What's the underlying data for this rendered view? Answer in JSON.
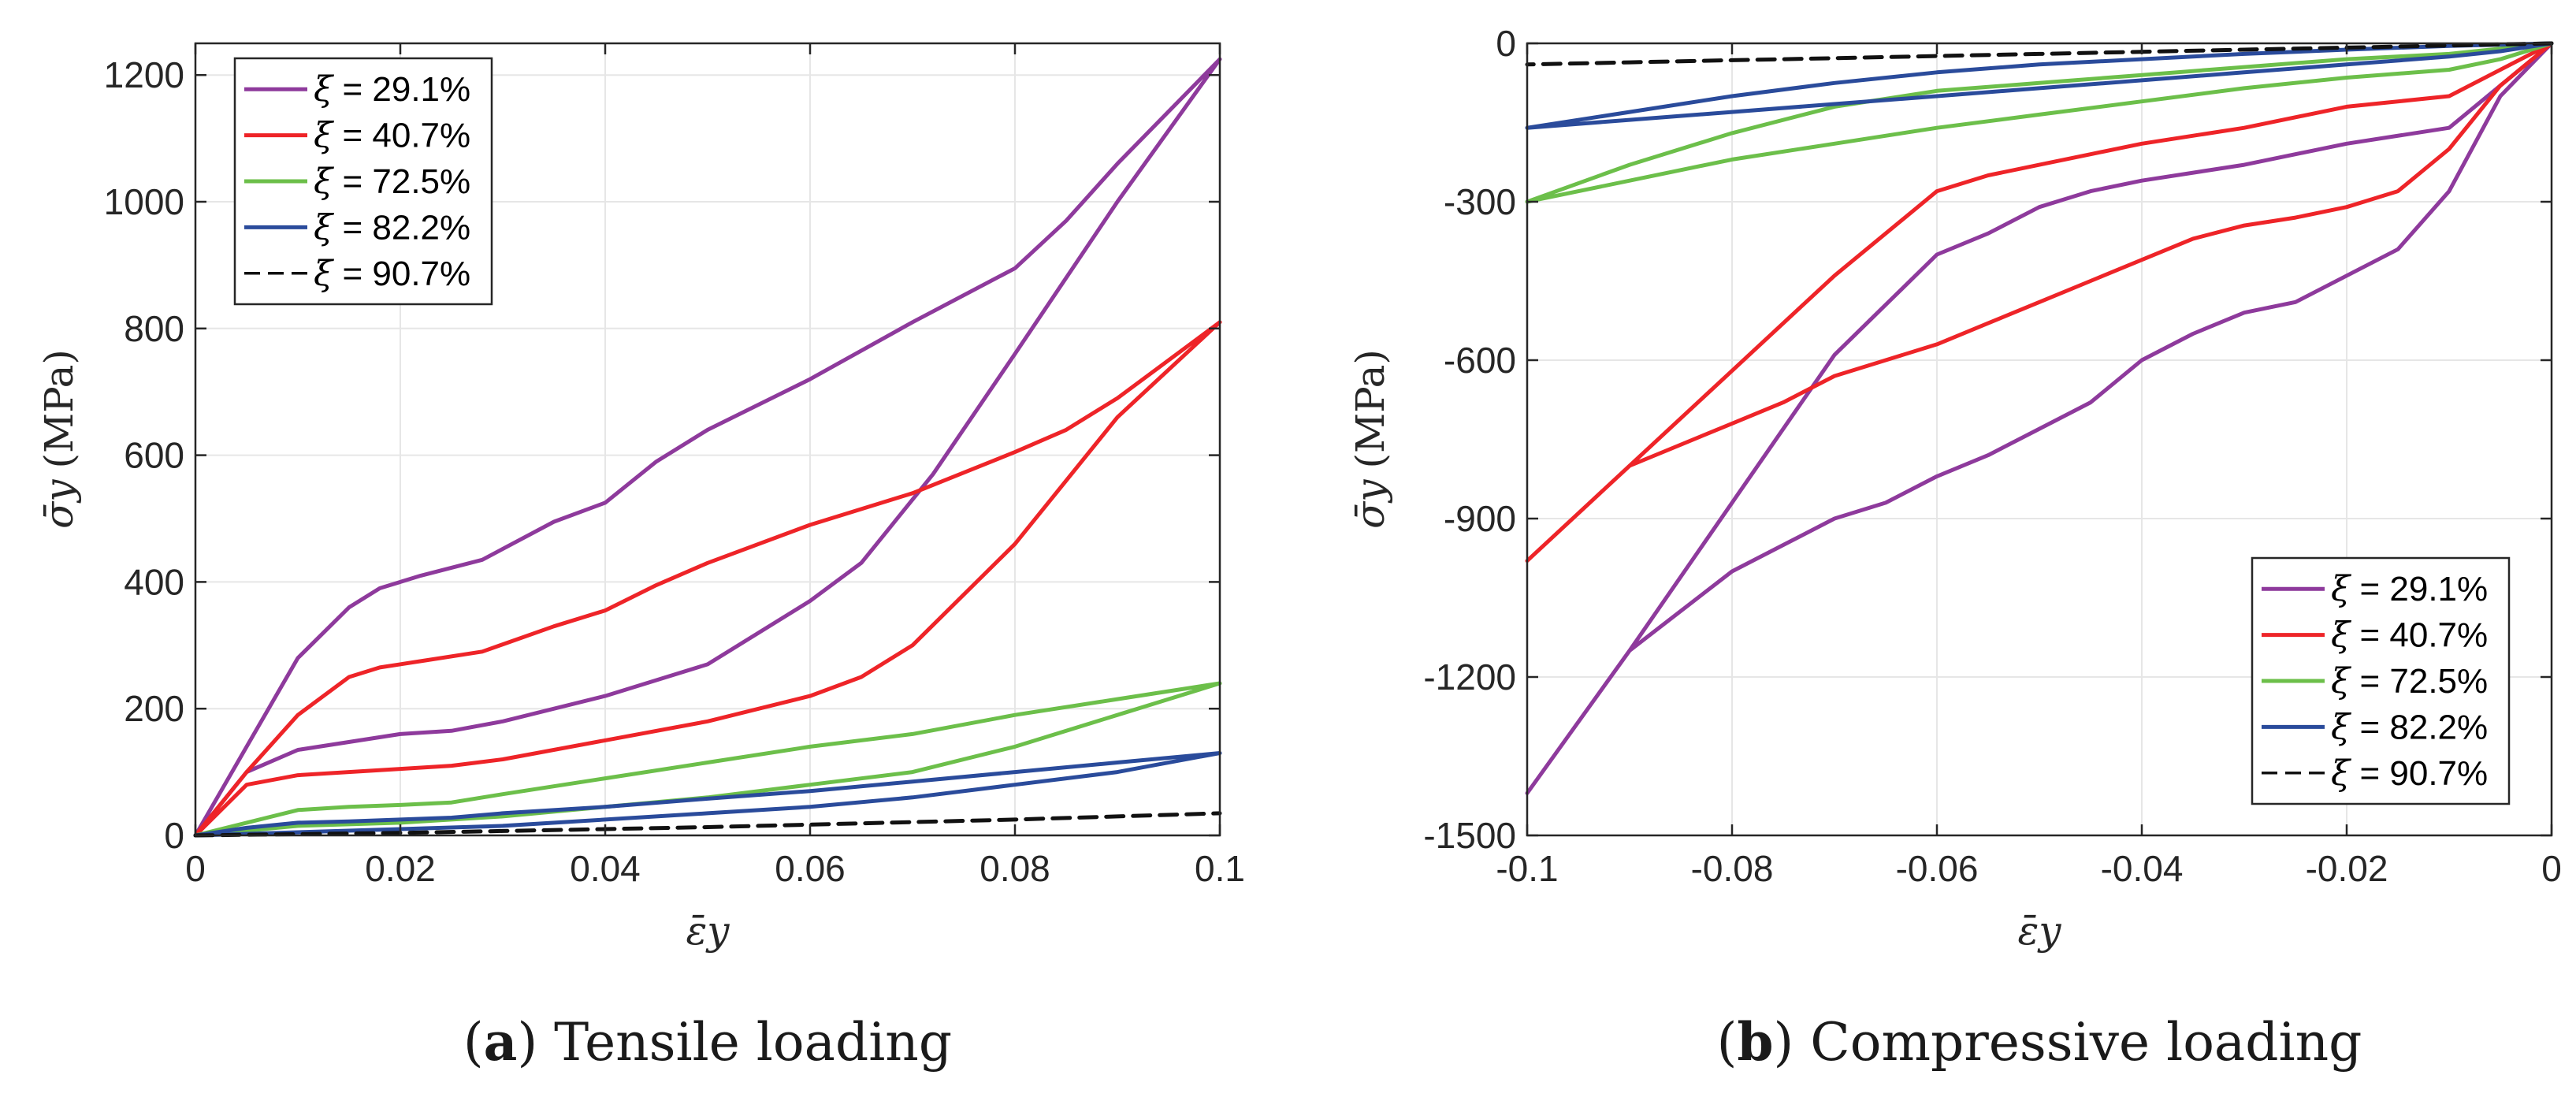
{
  "colors": {
    "xi_29_1": "#8e3a9c",
    "xi_40_7": "#ee2428",
    "xi_72_5": "#6cbf4a",
    "xi_82_2": "#2a4b9b",
    "xi_90_7": "#111111"
  },
  "chart_data": [
    {
      "id": "tensile",
      "type": "line",
      "caption_letter": "a",
      "caption_text": "Tensile loading",
      "xlabel": "ε̄y",
      "ylabel": "σ̄y",
      "ylabel_unit": "(MPa)",
      "xlim": [
        0,
        0.1
      ],
      "ylim": [
        0,
        1250
      ],
      "xticks": [
        0,
        0.02,
        0.04,
        0.06,
        0.08,
        0.1
      ],
      "xtick_labels": [
        "0",
        "0.02",
        "0.04",
        "0.06",
        "0.08",
        "0.1"
      ],
      "yticks": [
        0,
        200,
        400,
        600,
        800,
        1000,
        1200
      ],
      "ytick_labels": [
        "0",
        "200",
        "400",
        "600",
        "800",
        "1000",
        "1200"
      ],
      "grid": true,
      "legend_position": "top-left",
      "series": [
        {
          "key": "xi_29_1",
          "symbol": "ξ",
          "label": " = 29.1%",
          "dash": "solid",
          "x": [
            0,
            0.005,
            0.01,
            0.015,
            0.018,
            0.022,
            0.028,
            0.035,
            0.04,
            0.045,
            0.05,
            0.06,
            0.07,
            0.08,
            0.085,
            0.09,
            0.1,
            0.09,
            0.08,
            0.072,
            0.065,
            0.06,
            0.05,
            0.04,
            0.03,
            0.025,
            0.02,
            0.01,
            0.005,
            0
          ],
          "y": [
            0,
            140,
            280,
            360,
            390,
            410,
            435,
            495,
            525,
            590,
            640,
            720,
            810,
            895,
            970,
            1060,
            1225,
            1000,
            760,
            570,
            430,
            370,
            270,
            220,
            180,
            165,
            160,
            135,
            100,
            0
          ]
        },
        {
          "key": "xi_40_7",
          "symbol": "ξ",
          "label": " = 40.7%",
          "dash": "solid",
          "x": [
            0,
            0.005,
            0.01,
            0.015,
            0.018,
            0.022,
            0.028,
            0.035,
            0.04,
            0.045,
            0.05,
            0.06,
            0.07,
            0.08,
            0.085,
            0.09,
            0.1,
            0.09,
            0.08,
            0.07,
            0.065,
            0.06,
            0.05,
            0.04,
            0.03,
            0.025,
            0.02,
            0.01,
            0.005,
            0
          ],
          "y": [
            0,
            100,
            190,
            250,
            265,
            275,
            290,
            330,
            355,
            395,
            430,
            490,
            540,
            605,
            640,
            690,
            810,
            660,
            460,
            300,
            250,
            220,
            180,
            150,
            120,
            110,
            105,
            95,
            80,
            0
          ]
        },
        {
          "key": "xi_72_5",
          "symbol": "ξ",
          "label": " = 72.5%",
          "dash": "solid",
          "x": [
            0,
            0.005,
            0.01,
            0.015,
            0.02,
            0.025,
            0.03,
            0.04,
            0.05,
            0.06,
            0.07,
            0.08,
            0.09,
            0.1,
            0.09,
            0.08,
            0.07,
            0.06,
            0.05,
            0.04,
            0.03,
            0.02,
            0.01,
            0
          ],
          "y": [
            0,
            20,
            40,
            45,
            48,
            52,
            65,
            90,
            115,
            140,
            160,
            190,
            215,
            240,
            190,
            140,
            100,
            80,
            60,
            45,
            30,
            20,
            15,
            0
          ]
        },
        {
          "key": "xi_82_2",
          "symbol": "ξ",
          "label": " = 82.2%",
          "dash": "solid",
          "x": [
            0,
            0.005,
            0.01,
            0.015,
            0.02,
            0.025,
            0.03,
            0.04,
            0.05,
            0.06,
            0.07,
            0.08,
            0.09,
            0.1,
            0.09,
            0.08,
            0.07,
            0.06,
            0.05,
            0.04,
            0.03,
            0.02,
            0.01,
            0
          ],
          "y": [
            0,
            12,
            20,
            22,
            25,
            28,
            35,
            45,
            58,
            70,
            85,
            100,
            115,
            130,
            100,
            80,
            60,
            45,
            35,
            25,
            15,
            10,
            5,
            0
          ]
        },
        {
          "key": "xi_90_7",
          "symbol": "ξ",
          "label": " = 90.7%",
          "dash": "dashed",
          "x": [
            0,
            0.01,
            0.02,
            0.03,
            0.04,
            0.05,
            0.06,
            0.07,
            0.08,
            0.09,
            0.1
          ],
          "y": [
            0,
            2,
            4,
            7,
            10,
            13,
            17,
            21,
            25,
            30,
            35
          ]
        }
      ]
    },
    {
      "id": "compressive",
      "type": "line",
      "caption_letter": "b",
      "caption_text": "Compressive loading",
      "xlabel": "ε̄y",
      "ylabel": "σ̄y",
      "ylabel_unit": "(MPa)",
      "xlim": [
        -0.1,
        0
      ],
      "ylim": [
        -1500,
        0
      ],
      "xticks": [
        -0.1,
        -0.08,
        -0.06,
        -0.04,
        -0.02,
        0
      ],
      "xtick_labels": [
        "-0.1",
        "-0.08",
        "-0.06",
        "-0.04",
        "-0.02",
        "0"
      ],
      "yticks": [
        0,
        -300,
        -600,
        -900,
        -1200,
        -1500
      ],
      "ytick_labels": [
        "0",
        "-300",
        "-600",
        "-900",
        "-1200",
        "-1500"
      ],
      "grid": true,
      "legend_position": "bottom-right",
      "series": [
        {
          "key": "xi_29_1",
          "symbol": "ξ",
          "label": " = 29.1%",
          "dash": "solid",
          "x": [
            0,
            -0.005,
            -0.01,
            -0.015,
            -0.02,
            -0.025,
            -0.03,
            -0.035,
            -0.04,
            -0.045,
            -0.05,
            -0.055,
            -0.06,
            -0.065,
            -0.07,
            -0.075,
            -0.08,
            -0.09,
            -0.1,
            -0.09,
            -0.08,
            -0.07,
            -0.06,
            -0.055,
            -0.05,
            -0.045,
            -0.04,
            -0.03,
            -0.02,
            -0.01,
            0
          ],
          "y": [
            0,
            -100,
            -280,
            -390,
            -440,
            -490,
            -510,
            -550,
            -600,
            -680,
            -730,
            -780,
            -820,
            -870,
            -900,
            -950,
            -1000,
            -1150,
            -1420,
            -1150,
            -870,
            -590,
            -400,
            -360,
            -310,
            -280,
            -260,
            -230,
            -190,
            -160,
            0
          ]
        },
        {
          "key": "xi_40_7",
          "symbol": "ξ",
          "label": " = 40.7%",
          "dash": "solid",
          "x": [
            0,
            -0.005,
            -0.01,
            -0.015,
            -0.02,
            -0.025,
            -0.03,
            -0.035,
            -0.04,
            -0.045,
            -0.05,
            -0.055,
            -0.06,
            -0.065,
            -0.07,
            -0.075,
            -0.08,
            -0.09,
            -0.1,
            -0.09,
            -0.08,
            -0.07,
            -0.06,
            -0.055,
            -0.05,
            -0.045,
            -0.04,
            -0.03,
            -0.02,
            -0.01,
            0
          ],
          "y": [
            0,
            -80,
            -200,
            -280,
            -310,
            -330,
            -345,
            -370,
            -410,
            -450,
            -490,
            -530,
            -570,
            -600,
            -630,
            -680,
            -720,
            -800,
            -980,
            -800,
            -620,
            -440,
            -280,
            -250,
            -230,
            -210,
            -190,
            -160,
            -120,
            -100,
            0
          ]
        },
        {
          "key": "xi_72_5",
          "symbol": "ξ",
          "label": " = 72.5%",
          "dash": "solid",
          "x": [
            0,
            -0.005,
            -0.01,
            -0.02,
            -0.03,
            -0.04,
            -0.05,
            -0.06,
            -0.07,
            -0.08,
            -0.09,
            -0.1,
            -0.09,
            -0.08,
            -0.07,
            -0.06,
            -0.05,
            -0.04,
            -0.03,
            -0.02,
            -0.01,
            -0.005,
            0
          ],
          "y": [
            0,
            -30,
            -50,
            -65,
            -85,
            -110,
            -135,
            -160,
            -190,
            -220,
            -260,
            -300,
            -230,
            -170,
            -120,
            -90,
            -75,
            -60,
            -45,
            -30,
            -20,
            -10,
            0
          ]
        },
        {
          "key": "xi_82_2",
          "symbol": "ξ",
          "label": " = 82.2%",
          "dash": "solid",
          "x": [
            0,
            -0.005,
            -0.01,
            -0.02,
            -0.03,
            -0.04,
            -0.05,
            -0.06,
            -0.07,
            -0.08,
            -0.09,
            -0.1,
            -0.09,
            -0.08,
            -0.07,
            -0.06,
            -0.05,
            -0.04,
            -0.03,
            -0.02,
            -0.01,
            0
          ],
          "y": [
            0,
            -15,
            -25,
            -40,
            -55,
            -70,
            -85,
            -100,
            -115,
            -130,
            -145,
            -160,
            -130,
            -100,
            -75,
            -55,
            -40,
            -30,
            -20,
            -12,
            -5,
            0
          ]
        },
        {
          "key": "xi_90_7",
          "symbol": "ξ",
          "label": " = 90.7%",
          "dash": "dashed",
          "x": [
            0,
            -0.01,
            -0.02,
            -0.03,
            -0.04,
            -0.05,
            -0.06,
            -0.07,
            -0.08,
            -0.09,
            -0.1
          ],
          "y": [
            0,
            -4,
            -8,
            -12,
            -16,
            -20,
            -24,
            -28,
            -32,
            -36,
            -40
          ]
        }
      ]
    }
  ]
}
